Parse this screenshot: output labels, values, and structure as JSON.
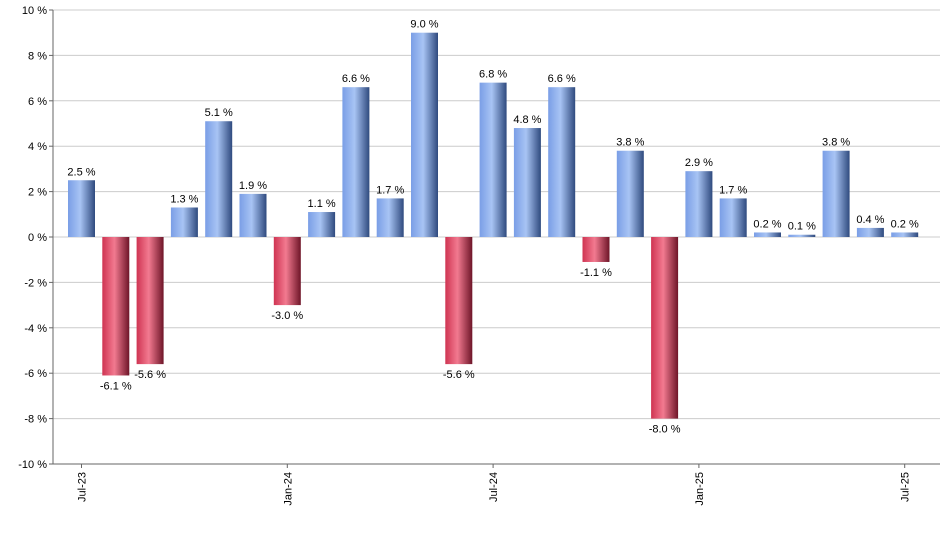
{
  "chart_data": {
    "type": "bar",
    "categories": [
      "Jul-23",
      "Aug-23",
      "Sep-23",
      "Oct-23",
      "Nov-23",
      "Dec-23",
      "Jan-24",
      "Feb-24",
      "Mar-24",
      "Apr-24",
      "May-24",
      "Jun-24",
      "Jul-24",
      "Aug-24",
      "Sep-24",
      "Oct-24",
      "Nov-24",
      "Dec-24",
      "Jan-25",
      "Feb-25",
      "Mar-25",
      "Apr-25",
      "May-25",
      "Jun-25",
      "Jul-25"
    ],
    "values": [
      2.5,
      -6.1,
      -5.6,
      1.3,
      5.1,
      1.9,
      -3.0,
      1.1,
      6.6,
      1.7,
      9.0,
      -5.6,
      6.8,
      4.8,
      6.6,
      -1.1,
      3.8,
      -8.0,
      2.9,
      1.7,
      0.2,
      0.1,
      3.8,
      0.4,
      0.2
    ],
    "value_labels": [
      "2.5 %",
      "-6.1 %",
      "-5.6 %",
      "1.3 %",
      "5.1 %",
      "1.9 %",
      "-3.0 %",
      "1.1 %",
      "6.6 %",
      "1.7 %",
      "9.0 %",
      "-5.6 %",
      "6.8 %",
      "4.8 %",
      "6.6 %",
      "-1.1 %",
      "3.8 %",
      "-8.0 %",
      "2.9 %",
      "1.7 %",
      "0.2 %",
      "0.1 %",
      "3.8 %",
      "0.4 %",
      "0.2 %"
    ],
    "x_tick_labels": [
      "Jul-23",
      "Jan-24",
      "Jul-24",
      "Jan-25",
      "Jul-25"
    ],
    "x_tick_indices": [
      0,
      6,
      12,
      18,
      24
    ],
    "y_tick_values": [
      -10,
      -8,
      -6,
      -4,
      -2,
      0,
      2,
      4,
      6,
      8,
      10
    ],
    "y_tick_labels": [
      "-10 %",
      "-8 %",
      "-6 %",
      "-4 %",
      "-2 %",
      "0 %",
      "2 %",
      "4 %",
      "6 %",
      "8 %",
      "10 %"
    ],
    "ylim": [
      -10,
      10
    ],
    "title": "",
    "xlabel": "",
    "ylabel": "",
    "grid": true,
    "legend": false,
    "colors": {
      "positive_light": "#a8c4f4",
      "positive_mid": "#7a9ee6",
      "positive_dark": "#2f4a7e",
      "negative_light": "#f27a90",
      "negative_mid": "#cf3452",
      "negative_dark": "#6e1528",
      "grid": "#cccccc",
      "axis": "#666666"
    }
  }
}
